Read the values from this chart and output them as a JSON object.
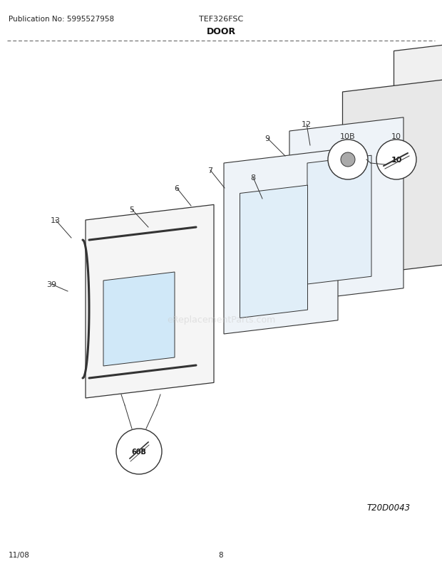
{
  "title": "DOOR",
  "pub_no": "Publication No: 5995527958",
  "model": "TEF326FSC",
  "date": "11/08",
  "page": "8",
  "diagram_id": "T20D0043",
  "watermark": "eReplacementParts.com",
  "bg_color": "#ffffff",
  "lc": "#333333",
  "fig_width": 6.2,
  "fig_height": 8.03,
  "dpi": 100
}
